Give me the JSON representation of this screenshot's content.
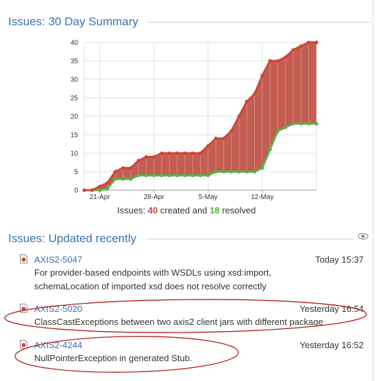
{
  "summary_section": {
    "title": "Issues: 30 Day Summary"
  },
  "chart_caption": {
    "prefix": "Issues: ",
    "created_count": "40",
    "middle": " created and ",
    "resolved_count": "18",
    "suffix": " resolved"
  },
  "updated_section": {
    "title": "Issues: Updated recently",
    "watch_icon": "eye-icon"
  },
  "issues": [
    {
      "key": "AXIS2-5047",
      "time": "Today 15:37",
      "summary_line1": "For provider-based endpoints with WSDLs using xsd:import,",
      "summary_line2": "schemaLocation of imported xsd does not resolve correctly"
    },
    {
      "key": "AXIS2-5020",
      "time": "Yesterday 16:54",
      "summary_line1": "ClassCastExceptions between two axis2 client jars with different package",
      "summary_line2": ""
    },
    {
      "key": "AXIS2-4244",
      "time": "Yesterday 16:52",
      "summary_line1": "NullPointerException in generated Stub.",
      "summary_line2": ""
    }
  ],
  "colors": {
    "created": "#d04437",
    "resolved": "#59b04a",
    "fill": "#c1554a",
    "link": "#3b73af",
    "annotation": "#b01c1c"
  },
  "chart_data": {
    "type": "area",
    "title": "",
    "xlabel": "",
    "ylabel": "",
    "ylim": [
      0,
      40
    ],
    "yticks": [
      0,
      5,
      10,
      15,
      20,
      25,
      30,
      35,
      40
    ],
    "xtick_labels": [
      {
        "day": 2,
        "label": "21-Apr"
      },
      {
        "day": 9,
        "label": "28-Apr"
      },
      {
        "day": 16,
        "label": "5-May"
      },
      {
        "day": 23,
        "label": "12-May"
      }
    ],
    "x_days": [
      0,
      1,
      2,
      3,
      4,
      5,
      6,
      7,
      8,
      9,
      10,
      11,
      12,
      13,
      14,
      15,
      16,
      17,
      18,
      19,
      20,
      21,
      22,
      23,
      24,
      25,
      26,
      27,
      28,
      29,
      30
    ],
    "series": [
      {
        "name": "created",
        "values": [
          0,
          0,
          1,
          2,
          5,
          6,
          6,
          8,
          9,
          9,
          10,
          10,
          10,
          10,
          10,
          10,
          12,
          14,
          14,
          16,
          20,
          24,
          26,
          31,
          35,
          35,
          36,
          38,
          39,
          40,
          40
        ]
      },
      {
        "name": "resolved",
        "values": [
          0,
          0,
          0,
          0.5,
          3,
          3,
          3,
          4,
          4,
          4,
          4,
          4,
          4,
          4,
          4,
          4,
          4,
          5,
          5,
          5,
          5,
          5,
          5,
          6,
          11,
          16,
          17,
          18,
          18,
          18,
          18
        ]
      }
    ],
    "grid": true
  }
}
